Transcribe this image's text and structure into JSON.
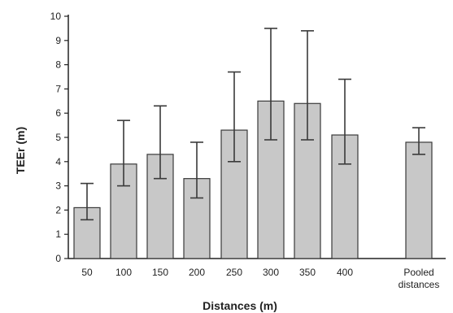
{
  "chart_data": {
    "type": "bar",
    "title": "",
    "xlabel": "Distances (m)",
    "ylabel": "TEEr (m)",
    "ylim": [
      0,
      10
    ],
    "yticks": [
      0,
      1,
      2,
      3,
      4,
      5,
      6,
      7,
      8,
      9,
      10
    ],
    "categories": [
      "50",
      "100",
      "150",
      "200",
      "250",
      "300",
      "350",
      "400",
      "Pooled distances"
    ],
    "category_lines": [
      [
        "50"
      ],
      [
        "100"
      ],
      [
        "150"
      ],
      [
        "200"
      ],
      [
        "250"
      ],
      [
        "300"
      ],
      [
        "350"
      ],
      [
        "400"
      ],
      [
        "Pooled",
        "distances"
      ]
    ],
    "values": [
      2.1,
      3.9,
      4.3,
      3.3,
      5.3,
      6.5,
      6.4,
      5.1,
      4.8
    ],
    "error_upper": [
      3.1,
      5.7,
      6.3,
      4.8,
      7.7,
      9.5,
      9.4,
      7.4,
      5.4
    ],
    "error_lower": [
      1.6,
      3.0,
      3.3,
      2.5,
      4.0,
      4.9,
      4.9,
      3.9,
      4.3
    ],
    "grid": false,
    "legend": "none",
    "colors": {
      "bar": "#c8c8c8",
      "bar_edge": "#3a3a3a",
      "axis": "#222222"
    }
  }
}
